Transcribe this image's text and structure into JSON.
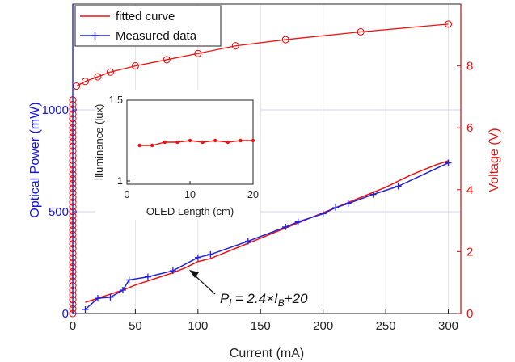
{
  "chart_data": [
    {
      "type": "line",
      "xlabel": "Current (mA)",
      "ylabel": "Optical Power (mW)",
      "ylabel_right": "Voltage (V)",
      "xlim": [
        0,
        310
      ],
      "ylim_left": [
        0,
        1520
      ],
      "ylim_right": [
        0,
        10
      ],
      "x_ticks": [
        "0",
        "50",
        "100",
        "150",
        "200",
        "250",
        "300"
      ],
      "y_left_ticks": [
        "0",
        "500",
        "1000"
      ],
      "y_right_ticks": [
        "0",
        "2",
        "4",
        "6",
        "8"
      ],
      "grid": true,
      "legend_position": "top-left",
      "colors": {
        "left_axis": "#1010ee",
        "right_axis": "#ee1111",
        "fit": "#ee1111",
        "measured": "#2020dd",
        "grid": "#e4e4e4"
      },
      "series": [
        {
          "name": "fitted curve",
          "axis": "left",
          "x": [
            10,
            20,
            30,
            40,
            50,
            60,
            70,
            80,
            90,
            100,
            110,
            120,
            130,
            140,
            150,
            160,
            170,
            180,
            190,
            200,
            210,
            220,
            230,
            240,
            250,
            260,
            270,
            280,
            290,
            300
          ],
          "y": [
            55,
            75,
            95,
            115,
            140,
            160,
            180,
            200,
            225,
            255,
            270,
            295,
            320,
            345,
            370,
            395,
            420,
            445,
            470,
            495,
            520,
            545,
            570,
            595,
            620,
            650,
            680,
            705,
            730,
            750
          ]
        },
        {
          "name": "Measured data",
          "axis": "left",
          "marker": "+",
          "x": [
            10,
            20,
            30,
            40,
            45,
            60,
            80,
            100,
            110,
            140,
            170,
            180,
            200,
            210,
            220,
            240,
            260,
            300
          ],
          "y": [
            20,
            75,
            80,
            115,
            165,
            180,
            210,
            275,
            290,
            355,
            425,
            450,
            490,
            520,
            540,
            585,
            625,
            740
          ]
        },
        {
          "name": "Voltage",
          "axis": "right",
          "marker": "o",
          "x": [
            0,
            0,
            0,
            0,
            0,
            0,
            0,
            0,
            0,
            0,
            0,
            0,
            0,
            0,
            0,
            0,
            0,
            0,
            0,
            0,
            0,
            0,
            0,
            0,
            0,
            0,
            0,
            0,
            0,
            0,
            0,
            0,
            0,
            0,
            0,
            0,
            0,
            0,
            0,
            0,
            0,
            0,
            0,
            0,
            0,
            0,
            0,
            3,
            10,
            20,
            30,
            50,
            75,
            100,
            130,
            170,
            230,
            300
          ],
          "y": [
            0,
            0.15,
            0.3,
            0.45,
            0.6,
            0.75,
            0.9,
            1.05,
            1.2,
            1.35,
            1.5,
            1.65,
            1.8,
            1.95,
            2.1,
            2.25,
            2.4,
            2.55,
            2.7,
            2.85,
            3.0,
            3.15,
            3.3,
            3.45,
            3.6,
            3.75,
            3.9,
            4.05,
            4.2,
            4.35,
            4.5,
            4.65,
            4.8,
            4.95,
            5.1,
            5.25,
            5.4,
            5.55,
            5.7,
            5.85,
            6.0,
            6.15,
            6.3,
            6.45,
            6.6,
            6.75,
            6.9,
            7.35,
            7.5,
            7.65,
            7.8,
            8.0,
            8.2,
            8.4,
            8.65,
            8.85,
            9.1,
            9.35
          ]
        }
      ],
      "annotation": {
        "x": 100,
        "y": 210,
        "prefix": "P",
        "sub1": "l",
        "mid": " = 2.4×",
        "var": "I",
        "sub2": "B",
        "suffix": "+20"
      }
    },
    {
      "type": "line",
      "xlabel": "OLED Length (cm)",
      "ylabel": "Illuminance (lux)",
      "xlim": [
        0,
        20
      ],
      "ylim": [
        0.98,
        1.5
      ],
      "x_ticks": [
        "0",
        "10",
        "20"
      ],
      "y_ticks": [
        "1",
        "1.5"
      ],
      "series": [
        {
          "name": "",
          "color": "#ee1111",
          "x": [
            2,
            4,
            6,
            8,
            10,
            12,
            14,
            16,
            18,
            20
          ],
          "y": [
            1.22,
            1.22,
            1.24,
            1.24,
            1.25,
            1.24,
            1.25,
            1.24,
            1.25,
            1.25
          ]
        }
      ]
    }
  ]
}
